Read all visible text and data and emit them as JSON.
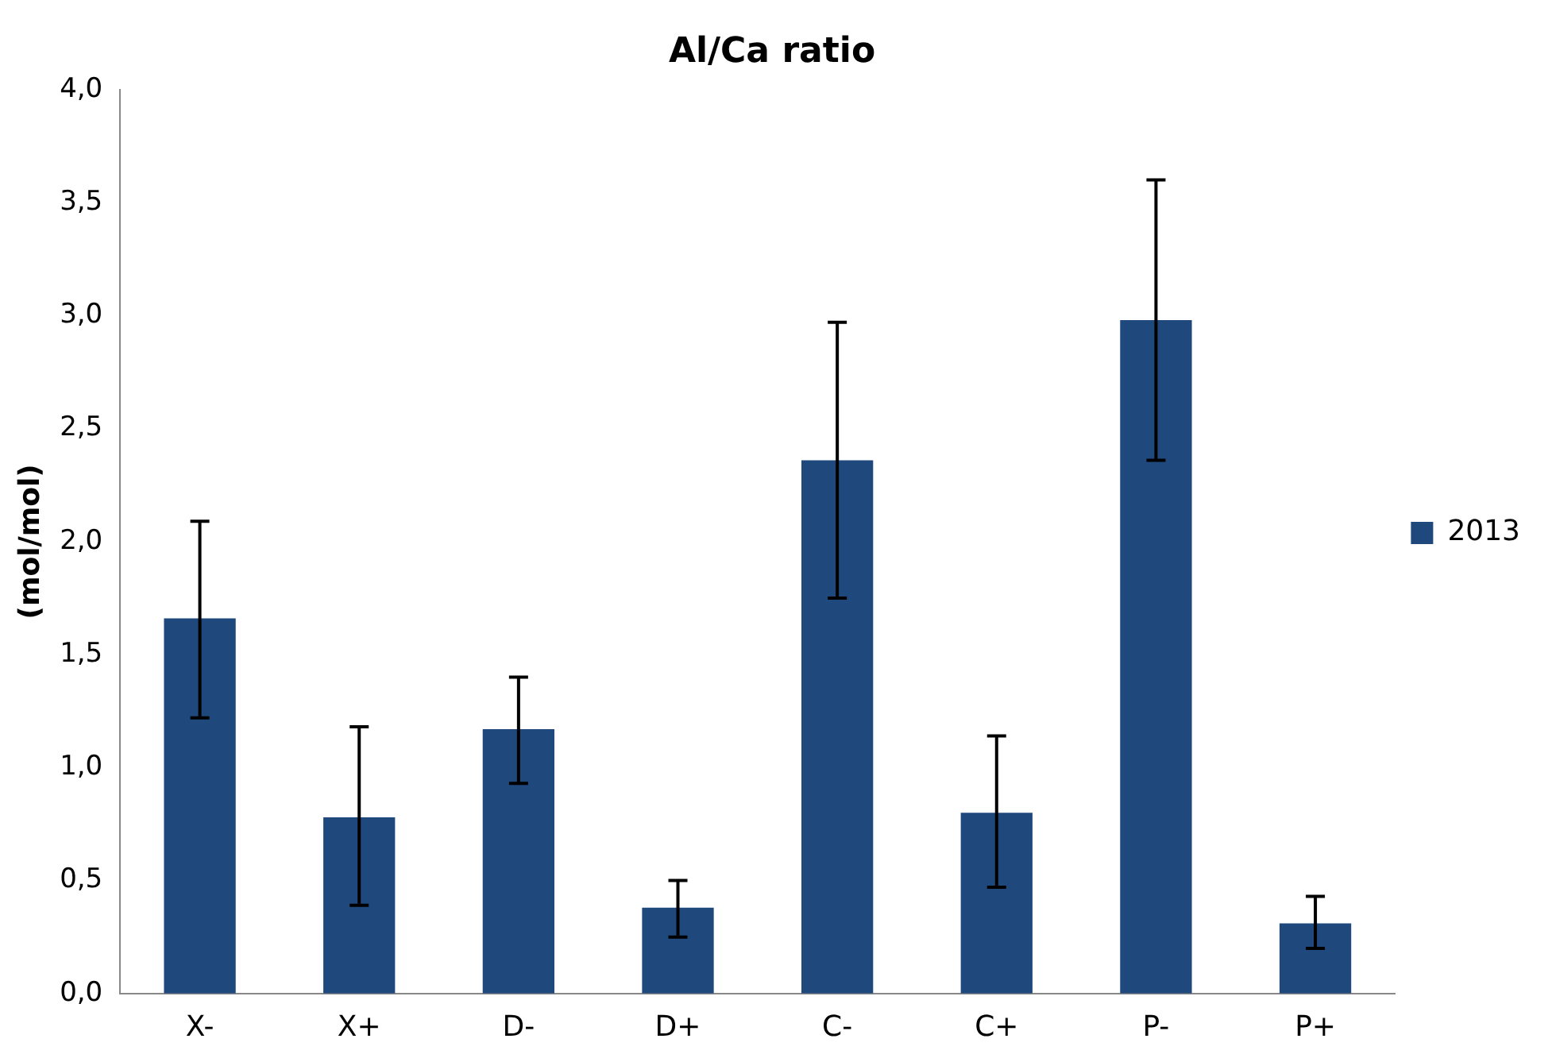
{
  "chart_data": {
    "type": "bar",
    "title": "Al/Ca ratio",
    "ylabel": "(mol/mol)",
    "categories": [
      "X-",
      "X+",
      "D-",
      "D+",
      "C-",
      "C+",
      "P-",
      "P+"
    ],
    "series": [
      {
        "name": "2013",
        "color": "#1f497d",
        "values": [
          1.66,
          0.78,
          1.17,
          0.38,
          2.36,
          0.8,
          2.98,
          0.31
        ],
        "errors": [
          [
            1.22,
            2.09
          ],
          [
            0.39,
            1.18
          ],
          [
            0.93,
            1.4
          ],
          [
            0.25,
            0.5
          ],
          [
            1.75,
            2.97
          ],
          [
            0.47,
            1.14
          ],
          [
            2.36,
            3.6
          ],
          [
            0.2,
            0.43
          ]
        ]
      }
    ],
    "ylim": [
      0,
      4
    ],
    "yticks": [
      {
        "value": 0,
        "label": "0,0"
      },
      {
        "value": 0.5,
        "label": "0,5"
      },
      {
        "value": 1,
        "label": "1,0"
      },
      {
        "value": 1.5,
        "label": "1,5"
      },
      {
        "value": 2,
        "label": "2,0"
      },
      {
        "value": 2.5,
        "label": "2,5"
      },
      {
        "value": 3,
        "label": "3,0"
      },
      {
        "value": 3.5,
        "label": "3,5"
      },
      {
        "value": 4,
        "label": "4,0"
      }
    ],
    "grid": false,
    "legend": "right"
  }
}
